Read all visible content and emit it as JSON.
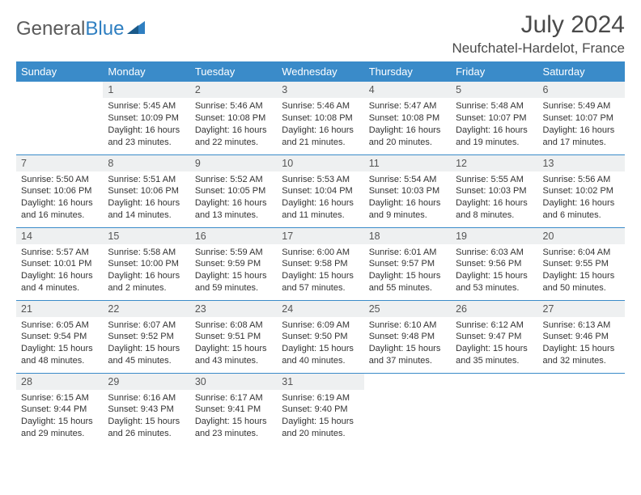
{
  "brand": {
    "part1": "General",
    "part2": "Blue"
  },
  "title": "July 2024",
  "location": "Neufchatel-Hardelot, France",
  "colors": {
    "header_bg": "#3a8bc9",
    "header_text": "#ffffff",
    "daynum_bg": "#eef0f1",
    "border": "#3a8bc9",
    "brand_gray": "#5a5a5a",
    "brand_blue": "#2f7fc1"
  },
  "weekdays": [
    "Sunday",
    "Monday",
    "Tuesday",
    "Wednesday",
    "Thursday",
    "Friday",
    "Saturday"
  ],
  "weeks": [
    [
      {
        "n": "",
        "sr": "",
        "ss": "",
        "dl": "",
        "empty": true
      },
      {
        "n": "1",
        "sr": "Sunrise: 5:45 AM",
        "ss": "Sunset: 10:09 PM",
        "dl": "Daylight: 16 hours and 23 minutes."
      },
      {
        "n": "2",
        "sr": "Sunrise: 5:46 AM",
        "ss": "Sunset: 10:08 PM",
        "dl": "Daylight: 16 hours and 22 minutes."
      },
      {
        "n": "3",
        "sr": "Sunrise: 5:46 AM",
        "ss": "Sunset: 10:08 PM",
        "dl": "Daylight: 16 hours and 21 minutes."
      },
      {
        "n": "4",
        "sr": "Sunrise: 5:47 AM",
        "ss": "Sunset: 10:08 PM",
        "dl": "Daylight: 16 hours and 20 minutes."
      },
      {
        "n": "5",
        "sr": "Sunrise: 5:48 AM",
        "ss": "Sunset: 10:07 PM",
        "dl": "Daylight: 16 hours and 19 minutes."
      },
      {
        "n": "6",
        "sr": "Sunrise: 5:49 AM",
        "ss": "Sunset: 10:07 PM",
        "dl": "Daylight: 16 hours and 17 minutes."
      }
    ],
    [
      {
        "n": "7",
        "sr": "Sunrise: 5:50 AM",
        "ss": "Sunset: 10:06 PM",
        "dl": "Daylight: 16 hours and 16 minutes."
      },
      {
        "n": "8",
        "sr": "Sunrise: 5:51 AM",
        "ss": "Sunset: 10:06 PM",
        "dl": "Daylight: 16 hours and 14 minutes."
      },
      {
        "n": "9",
        "sr": "Sunrise: 5:52 AM",
        "ss": "Sunset: 10:05 PM",
        "dl": "Daylight: 16 hours and 13 minutes."
      },
      {
        "n": "10",
        "sr": "Sunrise: 5:53 AM",
        "ss": "Sunset: 10:04 PM",
        "dl": "Daylight: 16 hours and 11 minutes."
      },
      {
        "n": "11",
        "sr": "Sunrise: 5:54 AM",
        "ss": "Sunset: 10:03 PM",
        "dl": "Daylight: 16 hours and 9 minutes."
      },
      {
        "n": "12",
        "sr": "Sunrise: 5:55 AM",
        "ss": "Sunset: 10:03 PM",
        "dl": "Daylight: 16 hours and 8 minutes."
      },
      {
        "n": "13",
        "sr": "Sunrise: 5:56 AM",
        "ss": "Sunset: 10:02 PM",
        "dl": "Daylight: 16 hours and 6 minutes."
      }
    ],
    [
      {
        "n": "14",
        "sr": "Sunrise: 5:57 AM",
        "ss": "Sunset: 10:01 PM",
        "dl": "Daylight: 16 hours and 4 minutes."
      },
      {
        "n": "15",
        "sr": "Sunrise: 5:58 AM",
        "ss": "Sunset: 10:00 PM",
        "dl": "Daylight: 16 hours and 2 minutes."
      },
      {
        "n": "16",
        "sr": "Sunrise: 5:59 AM",
        "ss": "Sunset: 9:59 PM",
        "dl": "Daylight: 15 hours and 59 minutes."
      },
      {
        "n": "17",
        "sr": "Sunrise: 6:00 AM",
        "ss": "Sunset: 9:58 PM",
        "dl": "Daylight: 15 hours and 57 minutes."
      },
      {
        "n": "18",
        "sr": "Sunrise: 6:01 AM",
        "ss": "Sunset: 9:57 PM",
        "dl": "Daylight: 15 hours and 55 minutes."
      },
      {
        "n": "19",
        "sr": "Sunrise: 6:03 AM",
        "ss": "Sunset: 9:56 PM",
        "dl": "Daylight: 15 hours and 53 minutes."
      },
      {
        "n": "20",
        "sr": "Sunrise: 6:04 AM",
        "ss": "Sunset: 9:55 PM",
        "dl": "Daylight: 15 hours and 50 minutes."
      }
    ],
    [
      {
        "n": "21",
        "sr": "Sunrise: 6:05 AM",
        "ss": "Sunset: 9:54 PM",
        "dl": "Daylight: 15 hours and 48 minutes."
      },
      {
        "n": "22",
        "sr": "Sunrise: 6:07 AM",
        "ss": "Sunset: 9:52 PM",
        "dl": "Daylight: 15 hours and 45 minutes."
      },
      {
        "n": "23",
        "sr": "Sunrise: 6:08 AM",
        "ss": "Sunset: 9:51 PM",
        "dl": "Daylight: 15 hours and 43 minutes."
      },
      {
        "n": "24",
        "sr": "Sunrise: 6:09 AM",
        "ss": "Sunset: 9:50 PM",
        "dl": "Daylight: 15 hours and 40 minutes."
      },
      {
        "n": "25",
        "sr": "Sunrise: 6:10 AM",
        "ss": "Sunset: 9:48 PM",
        "dl": "Daylight: 15 hours and 37 minutes."
      },
      {
        "n": "26",
        "sr": "Sunrise: 6:12 AM",
        "ss": "Sunset: 9:47 PM",
        "dl": "Daylight: 15 hours and 35 minutes."
      },
      {
        "n": "27",
        "sr": "Sunrise: 6:13 AM",
        "ss": "Sunset: 9:46 PM",
        "dl": "Daylight: 15 hours and 32 minutes."
      }
    ],
    [
      {
        "n": "28",
        "sr": "Sunrise: 6:15 AM",
        "ss": "Sunset: 9:44 PM",
        "dl": "Daylight: 15 hours and 29 minutes."
      },
      {
        "n": "29",
        "sr": "Sunrise: 6:16 AM",
        "ss": "Sunset: 9:43 PM",
        "dl": "Daylight: 15 hours and 26 minutes."
      },
      {
        "n": "30",
        "sr": "Sunrise: 6:17 AM",
        "ss": "Sunset: 9:41 PM",
        "dl": "Daylight: 15 hours and 23 minutes."
      },
      {
        "n": "31",
        "sr": "Sunrise: 6:19 AM",
        "ss": "Sunset: 9:40 PM",
        "dl": "Daylight: 15 hours and 20 minutes."
      },
      {
        "n": "",
        "sr": "",
        "ss": "",
        "dl": "",
        "empty": true
      },
      {
        "n": "",
        "sr": "",
        "ss": "",
        "dl": "",
        "empty": true
      },
      {
        "n": "",
        "sr": "",
        "ss": "",
        "dl": "",
        "empty": true
      }
    ]
  ]
}
